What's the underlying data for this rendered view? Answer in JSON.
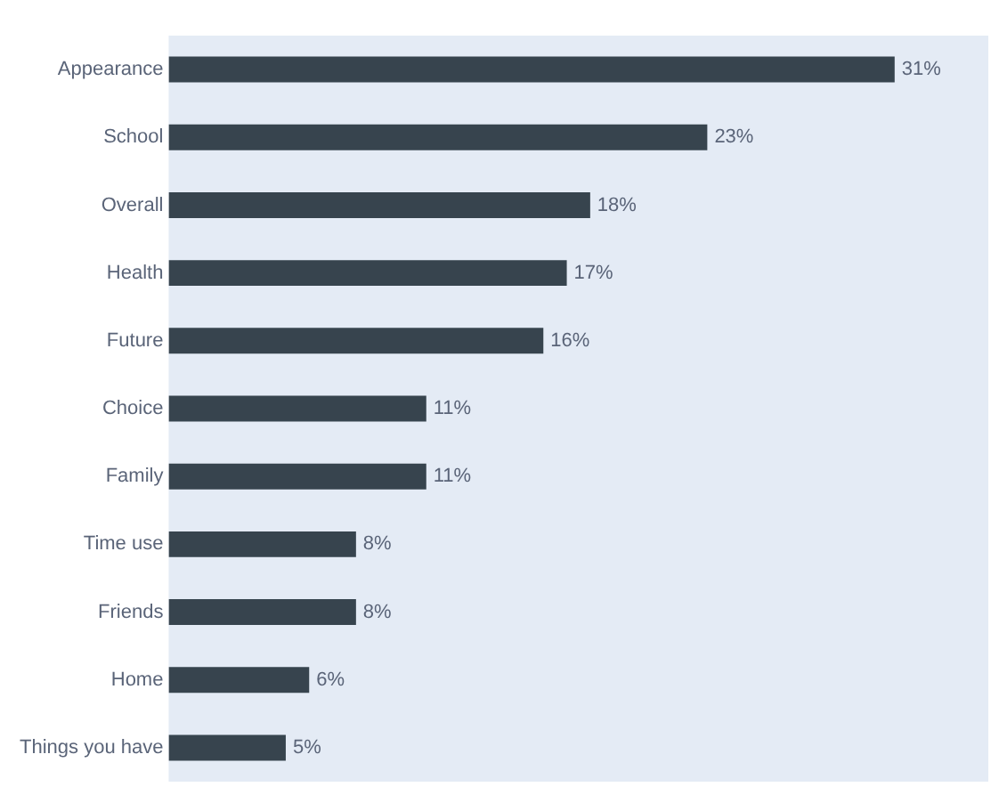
{
  "chart_data": {
    "type": "bar",
    "orientation": "horizontal",
    "categories": [
      "Appearance",
      "School",
      "Overall",
      "Health",
      "Future",
      "Choice",
      "Family",
      "Time use",
      "Friends",
      "Home",
      "Things you have"
    ],
    "values": [
      31,
      23,
      18,
      17,
      16,
      11,
      11,
      8,
      8,
      6,
      5
    ],
    "value_labels": [
      "31%",
      "23%",
      "18%",
      "17%",
      "16%",
      "11%",
      "11%",
      "8%",
      "8%",
      "6%",
      "5%"
    ],
    "color": "#37444e",
    "grid": false,
    "legend": false,
    "tick_labels": "y"
  }
}
